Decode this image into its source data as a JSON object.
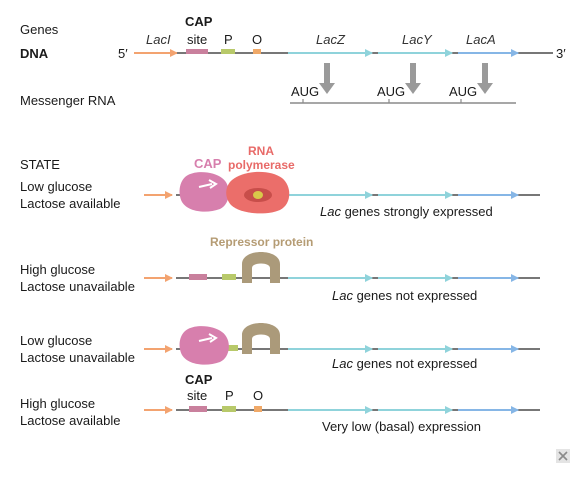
{
  "colors": {
    "dna_line": "#4a4a4a",
    "lacz_segment": "#9fd9df",
    "lacy_segment": "#8fbfe8",
    "laca_segment": "#9aa9e6",
    "arrow_laci": "#f3a370",
    "cap_site_box": "#c9809d",
    "promoter_box": "#b8c96a",
    "operator_box": "#f0a968",
    "cap_protein": "#d77fad",
    "rna_polymerase": "#eb6e6a",
    "rna_polymerase_label": "#e86a68",
    "repressor": "#ab9a7a",
    "repressor_label": "#b59c74",
    "mrna_line": "#8a8a8a",
    "aug_arrow": "#9a9a9a"
  },
  "header": {
    "genes_label": "Genes",
    "dna_label": "DNA",
    "five_prime": "5′",
    "three_prime": "3′",
    "laci": "LacI",
    "cap_site": [
      "CAP",
      "site"
    ],
    "promoter": "P",
    "operator": "O",
    "lacz": "LacZ",
    "lacy": "LacY",
    "laca": "LacA",
    "mrna_label": "Messenger RNA",
    "aug_labels": [
      "AUG",
      "AUG",
      "AUG"
    ]
  },
  "state_heading": "STATE",
  "states": [
    {
      "line1": "Low glucose",
      "line2": "Lactose available",
      "outcome_italic": "Lac",
      "outcome_rest": " genes strongly expressed"
    },
    {
      "line1": "High glucose",
      "line2": "Lactose unavailable",
      "outcome_italic": "Lac",
      "outcome_rest": " genes not expressed"
    },
    {
      "line1": "Low glucose",
      "line2": "Lactose unavailable",
      "outcome_italic": "Lac",
      "outcome_rest": " genes not expressed"
    },
    {
      "line1": "High glucose",
      "line2": "Lactose available",
      "outcome_italic": "",
      "outcome_rest": "Very low (basal) expression"
    }
  ],
  "proteins": {
    "cap": "CAP",
    "rna_polymerase": [
      "RNA",
      "polymerase"
    ],
    "repressor": "Repressor protein"
  },
  "state4_elements": {
    "cap_site": [
      "CAP",
      "site"
    ],
    "promoter": "P",
    "operator": "O"
  }
}
